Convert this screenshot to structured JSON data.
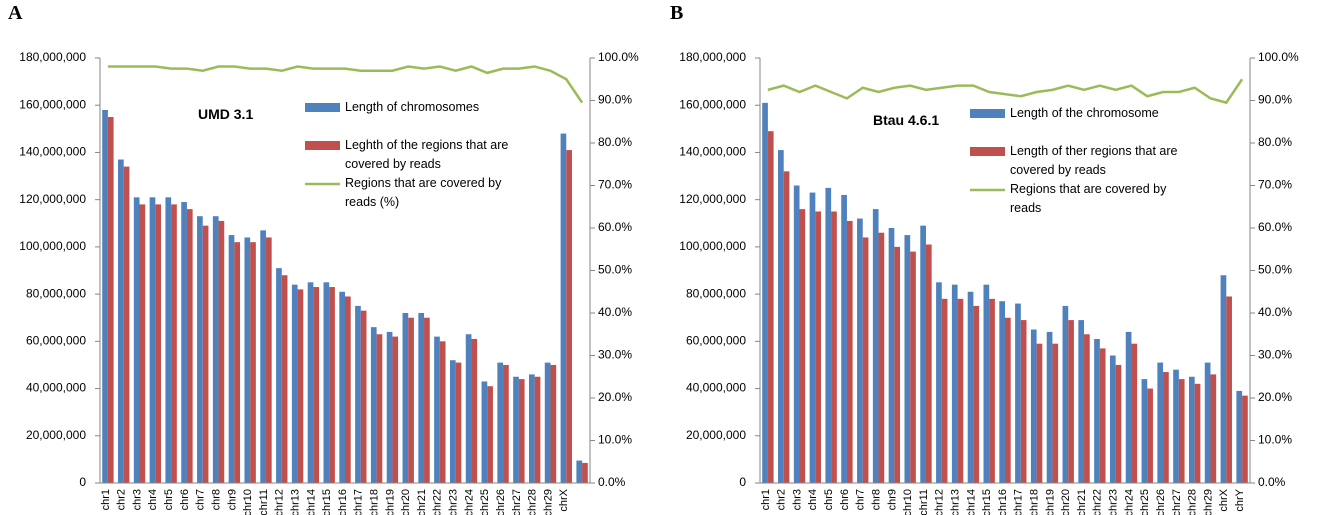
{
  "chart_data": [
    {
      "type": "bar",
      "label": "A",
      "annotation": "UMD 3.1",
      "categories": [
        "chr1",
        "chr2",
        "chr3",
        "chr4",
        "chr5",
        "chr6",
        "chr7",
        "chr8",
        "chr9",
        "chr10",
        "chr11",
        "chr12",
        "chr13",
        "chr14",
        "chr15",
        "chr16",
        "chr17",
        "chr18",
        "chr19",
        "chr20",
        "chr21",
        "chr22",
        "chr23",
        "chr24",
        "chr25",
        "chr26",
        "chr27",
        "chr28",
        "chr29",
        "chrX",
        null
      ],
      "series": [
        {
          "name": "Length of chromosomes",
          "color": "#4f81bd",
          "values": [
            158000000,
            137000000,
            121000000,
            121000000,
            121000000,
            119000000,
            113000000,
            113000000,
            105000000,
            104000000,
            107000000,
            91000000,
            84000000,
            85000000,
            85000000,
            81000000,
            75000000,
            66000000,
            64000000,
            72000000,
            72000000,
            62000000,
            52000000,
            63000000,
            43000000,
            51000000,
            45000000,
            46000000,
            51000000,
            148000000,
            9500000
          ]
        },
        {
          "name": "Leghth of the regions that are covered by reads",
          "color": "#c0504d",
          "values": [
            155000000,
            134000000,
            118000000,
            118000000,
            118000000,
            116000000,
            109000000,
            111000000,
            102000000,
            102000000,
            104000000,
            88000000,
            82000000,
            83000000,
            83000000,
            79000000,
            73000000,
            63000000,
            62000000,
            70000000,
            70000000,
            60000000,
            51000000,
            61000000,
            41000000,
            50000000,
            44000000,
            45000000,
            50000000,
            141000000,
            8500000
          ]
        },
        {
          "name": "Regions that are covered by reads (%)",
          "color": "#9bbb59",
          "type": "line",
          "axis": "y2",
          "values": [
            98,
            98,
            98,
            98,
            97.5,
            97.5,
            97,
            98,
            98,
            97.5,
            97.5,
            97,
            98,
            97.5,
            97.5,
            97.5,
            97,
            97,
            97,
            98,
            97.5,
            98,
            97,
            98,
            96.5,
            97.5,
            97.5,
            98,
            97,
            95,
            89.5
          ]
        }
      ],
      "ylim": [
        0,
        180000000
      ],
      "yticks": [
        {
          "value": 0,
          "label": "0"
        },
        {
          "value": 20000000,
          "label": "20,000,000"
        },
        {
          "value": 40000000,
          "label": "40,000,000"
        },
        {
          "value": 60000000,
          "label": "60,000,000"
        },
        {
          "value": 80000000,
          "label": "80,000,000"
        },
        {
          "value": 100000000,
          "label": "100,000,000"
        },
        {
          "value": 120000000,
          "label": "120,000,000"
        },
        {
          "value": 140000000,
          "label": "140,000,000"
        },
        {
          "value": 160000000,
          "label": "160,000,000"
        },
        {
          "value": 180000000,
          "label": "180,000,000"
        }
      ],
      "y2lim": [
        0,
        100
      ],
      "y2ticks": [
        {
          "value": 0,
          "label": "0.0%"
        },
        {
          "value": 10,
          "label": "10.0%"
        },
        {
          "value": 20,
          "label": "20.0%"
        },
        {
          "value": 30,
          "label": "30.0%"
        },
        {
          "value": 40,
          "label": "40.0%"
        },
        {
          "value": 50,
          "label": "50.0%"
        },
        {
          "value": 60,
          "label": "60.0%"
        },
        {
          "value": 70,
          "label": "70.0%"
        },
        {
          "value": 80,
          "label": "80.0%"
        },
        {
          "value": 90,
          "label": "90.0%"
        },
        {
          "value": 100,
          "label": "100.0%"
        }
      ]
    },
    {
      "type": "bar",
      "label": "B",
      "annotation": "Btau 4.6.1",
      "categories": [
        "chr1",
        "chr2",
        "chr3",
        "chr4",
        "chr5",
        "chr6",
        "chr7",
        "chr8",
        "chr9",
        "chr10",
        "chr11",
        "chr12",
        "chr13",
        "chr14",
        "chr15",
        "chr16",
        "chr17",
        "chr18",
        "chr19",
        "chr20",
        "chr21",
        "chr22",
        "chr23",
        "chr24",
        "chr25",
        "chr26",
        "chr27",
        "chr28",
        "chr29",
        "chrX",
        "chrY"
      ],
      "series": [
        {
          "name": "Length of the chromosome",
          "color": "#4f81bd",
          "values": [
            161000000,
            141000000,
            126000000,
            123000000,
            125000000,
            122000000,
            112000000,
            116000000,
            108000000,
            105000000,
            109000000,
            85000000,
            84000000,
            81000000,
            84000000,
            77000000,
            76000000,
            65000000,
            64000000,
            75000000,
            69000000,
            61000000,
            54000000,
            64000000,
            44000000,
            51000000,
            48000000,
            45000000,
            51000000,
            88000000,
            39000000
          ]
        },
        {
          "name": "Length of ther regions that are covered by reads",
          "color": "#c0504d",
          "values": [
            149000000,
            132000000,
            116000000,
            115000000,
            115000000,
            111000000,
            104000000,
            106000000,
            100000000,
            98000000,
            101000000,
            78000000,
            78000000,
            75000000,
            78000000,
            70000000,
            69000000,
            59000000,
            59000000,
            69000000,
            63000000,
            57000000,
            50000000,
            59000000,
            40000000,
            47000000,
            44000000,
            42000000,
            46000000,
            79000000,
            37000000
          ]
        },
        {
          "name": "Regions that are covered by reads",
          "color": "#9bbb59",
          "type": "line",
          "axis": "y2",
          "values": [
            92.5,
            93.5,
            92,
            93.5,
            92,
            90.5,
            93,
            92,
            93,
            93.5,
            92.5,
            93,
            93.5,
            93.5,
            92,
            91.5,
            91,
            92,
            92.5,
            93.5,
            92.5,
            93.5,
            92.5,
            93.5,
            91,
            92,
            92,
            93,
            90.5,
            89.5,
            95
          ]
        }
      ],
      "ylim": [
        0,
        180000000
      ],
      "yticks": [
        {
          "value": 0,
          "label": "0"
        },
        {
          "value": 20000000,
          "label": "20,000,000"
        },
        {
          "value": 40000000,
          "label": "40,000,000"
        },
        {
          "value": 60000000,
          "label": "60,000,000"
        },
        {
          "value": 80000000,
          "label": "80,000,000"
        },
        {
          "value": 100000000,
          "label": "100,000,000"
        },
        {
          "value": 120000000,
          "label": "120,000,000"
        },
        {
          "value": 140000000,
          "label": "140,000,000"
        },
        {
          "value": 160000000,
          "label": "160,000,000"
        },
        {
          "value": 180000000,
          "label": "180,000,000"
        }
      ],
      "y2lim": [
        0,
        100
      ],
      "y2ticks": [
        {
          "value": 0,
          "label": "0.0%"
        },
        {
          "value": 10,
          "label": "10.0%"
        },
        {
          "value": 20,
          "label": "20.0%"
        },
        {
          "value": 30,
          "label": "30.0%"
        },
        {
          "value": 40,
          "label": "40.0%"
        },
        {
          "value": 50,
          "label": "50.0%"
        },
        {
          "value": 60,
          "label": "60.0%"
        },
        {
          "value": 70,
          "label": "70.0%"
        },
        {
          "value": 80,
          "label": "80.0%"
        },
        {
          "value": 90,
          "label": "90.0%"
        },
        {
          "value": 100,
          "label": "100.0%"
        }
      ]
    }
  ]
}
